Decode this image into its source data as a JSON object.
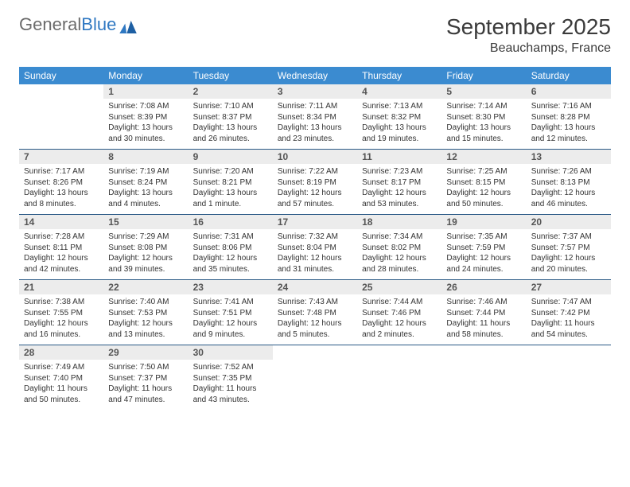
{
  "brand": {
    "part1": "General",
    "part2": "Blue"
  },
  "title": "September 2025",
  "location": "Beauchamps, France",
  "colors": {
    "header_bg": "#3b8bd0",
    "header_text": "#ffffff",
    "daynum_bg": "#ececec",
    "rule": "#2b5a86",
    "text": "#333333",
    "brand_gray": "#6b6b6b",
    "brand_blue": "#2f78c2"
  },
  "weekdays": [
    "Sunday",
    "Monday",
    "Tuesday",
    "Wednesday",
    "Thursday",
    "Friday",
    "Saturday"
  ],
  "weeks": [
    {
      "nums": [
        "",
        "1",
        "2",
        "3",
        "4",
        "5",
        "6"
      ],
      "cells": [
        null,
        {
          "sunrise": "7:08 AM",
          "sunset": "8:39 PM",
          "daylight": "13 hours and 30 minutes."
        },
        {
          "sunrise": "7:10 AM",
          "sunset": "8:37 PM",
          "daylight": "13 hours and 26 minutes."
        },
        {
          "sunrise": "7:11 AM",
          "sunset": "8:34 PM",
          "daylight": "13 hours and 23 minutes."
        },
        {
          "sunrise": "7:13 AM",
          "sunset": "8:32 PM",
          "daylight": "13 hours and 19 minutes."
        },
        {
          "sunrise": "7:14 AM",
          "sunset": "8:30 PM",
          "daylight": "13 hours and 15 minutes."
        },
        {
          "sunrise": "7:16 AM",
          "sunset": "8:28 PM",
          "daylight": "13 hours and 12 minutes."
        }
      ]
    },
    {
      "nums": [
        "7",
        "8",
        "9",
        "10",
        "11",
        "12",
        "13"
      ],
      "cells": [
        {
          "sunrise": "7:17 AM",
          "sunset": "8:26 PM",
          "daylight": "13 hours and 8 minutes."
        },
        {
          "sunrise": "7:19 AM",
          "sunset": "8:24 PM",
          "daylight": "13 hours and 4 minutes."
        },
        {
          "sunrise": "7:20 AM",
          "sunset": "8:21 PM",
          "daylight": "13 hours and 1 minute."
        },
        {
          "sunrise": "7:22 AM",
          "sunset": "8:19 PM",
          "daylight": "12 hours and 57 minutes."
        },
        {
          "sunrise": "7:23 AM",
          "sunset": "8:17 PM",
          "daylight": "12 hours and 53 minutes."
        },
        {
          "sunrise": "7:25 AM",
          "sunset": "8:15 PM",
          "daylight": "12 hours and 50 minutes."
        },
        {
          "sunrise": "7:26 AM",
          "sunset": "8:13 PM",
          "daylight": "12 hours and 46 minutes."
        }
      ]
    },
    {
      "nums": [
        "14",
        "15",
        "16",
        "17",
        "18",
        "19",
        "20"
      ],
      "cells": [
        {
          "sunrise": "7:28 AM",
          "sunset": "8:11 PM",
          "daylight": "12 hours and 42 minutes."
        },
        {
          "sunrise": "7:29 AM",
          "sunset": "8:08 PM",
          "daylight": "12 hours and 39 minutes."
        },
        {
          "sunrise": "7:31 AM",
          "sunset": "8:06 PM",
          "daylight": "12 hours and 35 minutes."
        },
        {
          "sunrise": "7:32 AM",
          "sunset": "8:04 PM",
          "daylight": "12 hours and 31 minutes."
        },
        {
          "sunrise": "7:34 AM",
          "sunset": "8:02 PM",
          "daylight": "12 hours and 28 minutes."
        },
        {
          "sunrise": "7:35 AM",
          "sunset": "7:59 PM",
          "daylight": "12 hours and 24 minutes."
        },
        {
          "sunrise": "7:37 AM",
          "sunset": "7:57 PM",
          "daylight": "12 hours and 20 minutes."
        }
      ]
    },
    {
      "nums": [
        "21",
        "22",
        "23",
        "24",
        "25",
        "26",
        "27"
      ],
      "cells": [
        {
          "sunrise": "7:38 AM",
          "sunset": "7:55 PM",
          "daylight": "12 hours and 16 minutes."
        },
        {
          "sunrise": "7:40 AM",
          "sunset": "7:53 PM",
          "daylight": "12 hours and 13 minutes."
        },
        {
          "sunrise": "7:41 AM",
          "sunset": "7:51 PM",
          "daylight": "12 hours and 9 minutes."
        },
        {
          "sunrise": "7:43 AM",
          "sunset": "7:48 PM",
          "daylight": "12 hours and 5 minutes."
        },
        {
          "sunrise": "7:44 AM",
          "sunset": "7:46 PM",
          "daylight": "12 hours and 2 minutes."
        },
        {
          "sunrise": "7:46 AM",
          "sunset": "7:44 PM",
          "daylight": "11 hours and 58 minutes."
        },
        {
          "sunrise": "7:47 AM",
          "sunset": "7:42 PM",
          "daylight": "11 hours and 54 minutes."
        }
      ]
    },
    {
      "nums": [
        "28",
        "29",
        "30",
        "",
        "",
        "",
        ""
      ],
      "cells": [
        {
          "sunrise": "7:49 AM",
          "sunset": "7:40 PM",
          "daylight": "11 hours and 50 minutes."
        },
        {
          "sunrise": "7:50 AM",
          "sunset": "7:37 PM",
          "daylight": "11 hours and 47 minutes."
        },
        {
          "sunrise": "7:52 AM",
          "sunset": "7:35 PM",
          "daylight": "11 hours and 43 minutes."
        },
        null,
        null,
        null,
        null
      ]
    }
  ],
  "labels": {
    "sunrise_prefix": "Sunrise: ",
    "sunset_prefix": "Sunset: ",
    "daylight_prefix": "Daylight: "
  }
}
